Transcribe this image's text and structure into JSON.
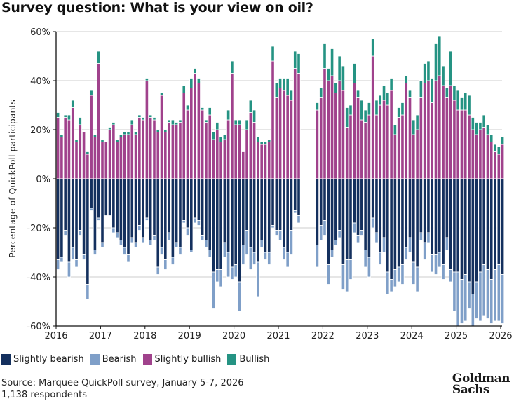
{
  "title": "Survey question: What is your view on oil?",
  "colors": {
    "slightly_bearish": "#14305e",
    "bearish": "#7f9fc8",
    "slightly_bullish": "#a0428c",
    "bullish": "#259383",
    "grid": "#cccccc",
    "axis": "#111111"
  },
  "legend": [
    {
      "key": "slightly_bearish",
      "label": "Slightly bearish"
    },
    {
      "key": "bearish",
      "label": "Bearish"
    },
    {
      "key": "slightly_bullish",
      "label": "Slightly bullish"
    },
    {
      "key": "bullish",
      "label": "Bullish"
    }
  ],
  "source": {
    "line1": "Source: Marquee QuickPoll survey, January 5-7, 2026",
    "line2": "1,138 respondents"
  },
  "logo": {
    "line1": "Goldman",
    "line2": "Sachs"
  },
  "chart_data": {
    "type": "bar",
    "stacked": true,
    "diverging": true,
    "title": "Survey question: What is your view on oil?",
    "xlabel": "",
    "ylabel": "Percentage of QuickPoll participants",
    "ylim": [
      -60,
      60
    ],
    "yticks": [
      60,
      40,
      20,
      0,
      -20,
      -40,
      -60
    ],
    "ytick_labels": [
      "60%",
      "40%",
      "20%",
      "0%",
      "-20%",
      "-40%",
      "-60%"
    ],
    "xticks": [
      "2016",
      "2017",
      "2018",
      "2019",
      "2020",
      "2021",
      "2022",
      "2023",
      "2024",
      "2025",
      "2026"
    ],
    "x_unit": "months since Jan 2016",
    "grid": true,
    "legend_position": "bottom-left",
    "series_order": [
      "slightly_bearish",
      "bearish",
      "slightly_bullish",
      "bullish"
    ],
    "bars": [
      {
        "m": 0,
        "sbull": 25,
        "bull": 2,
        "sbear": 33,
        "bear": 4
      },
      {
        "m": 1,
        "sbull": 17,
        "bull": 1,
        "sbear": 32,
        "bear": 2
      },
      {
        "m": 2,
        "sbull": 25,
        "bull": 1,
        "sbear": 21,
        "bear": 2
      },
      {
        "m": 3,
        "sbull": 24,
        "bull": 2,
        "sbear": 34,
        "bear": 6
      },
      {
        "m": 4,
        "sbull": 29,
        "bull": 3,
        "sbear": 28,
        "bear": 5
      },
      {
        "m": 5,
        "sbull": 15,
        "bull": 1,
        "sbear": 33,
        "bear": 3
      },
      {
        "m": 6,
        "sbull": 22,
        "bull": 3,
        "sbear": 21,
        "bear": 2
      },
      {
        "m": 7,
        "sbull": 19,
        "bull": 0,
        "sbear": 31,
        "bear": 2
      },
      {
        "m": 8,
        "sbull": 10,
        "bull": 1,
        "sbear": 43,
        "bear": 6
      },
      {
        "m": 9,
        "sbull": 34,
        "bull": 2,
        "sbear": 12,
        "bear": 1
      },
      {
        "m": 10,
        "sbull": 17,
        "bull": 1,
        "sbear": 29,
        "bear": 2
      },
      {
        "m": 11,
        "sbull": 47,
        "bull": 5,
        "sbear": 16,
        "bear": 1
      },
      {
        "m": 12,
        "sbull": 15,
        "bull": 1,
        "sbear": 26,
        "bear": 2
      },
      {
        "m": 13,
        "sbull": 15,
        "bull": 0,
        "sbear": 15,
        "bear": 0
      },
      {
        "m": 14,
        "sbull": 20,
        "bull": 1,
        "sbear": 15,
        "bear": 0
      },
      {
        "m": 15,
        "sbull": 22,
        "bull": 1,
        "sbear": 20,
        "bear": 2
      },
      {
        "m": 16,
        "sbull": 15,
        "bull": 1,
        "sbear": 22,
        "bear": 2
      },
      {
        "m": 17,
        "sbull": 17,
        "bull": 1,
        "sbear": 25,
        "bear": 2
      },
      {
        "m": 18,
        "sbull": 18,
        "bull": 1,
        "sbear": 28,
        "bear": 3
      },
      {
        "m": 19,
        "sbull": 18,
        "bull": 1,
        "sbear": 31,
        "bear": 3
      },
      {
        "m": 20,
        "sbull": 22,
        "bull": 2,
        "sbear": 24,
        "bear": 2
      },
      {
        "m": 21,
        "sbull": 18,
        "bull": 1,
        "sbear": 26,
        "bear": 2
      },
      {
        "m": 22,
        "sbull": 25,
        "bull": 1,
        "sbear": 19,
        "bear": 2
      },
      {
        "m": 23,
        "sbull": 24,
        "bull": 1,
        "sbear": 24,
        "bear": 2
      },
      {
        "m": 24,
        "sbull": 40,
        "bull": 1,
        "sbear": 16,
        "bear": 1
      },
      {
        "m": 25,
        "sbull": 25,
        "bull": 1,
        "sbear": 25,
        "bear": 2
      },
      {
        "m": 26,
        "sbull": 24,
        "bull": 1,
        "sbear": 23,
        "bear": 2
      },
      {
        "m": 27,
        "sbull": 19,
        "bull": 1,
        "sbear": 36,
        "bear": 3
      },
      {
        "m": 28,
        "sbull": 34,
        "bull": 1,
        "sbear": 28,
        "bear": 3
      },
      {
        "m": 29,
        "sbull": 19,
        "bull": 1,
        "sbear": 33,
        "bear": 4
      },
      {
        "m": 30,
        "sbull": 23,
        "bull": 1,
        "sbear": 22,
        "bear": 3
      },
      {
        "m": 31,
        "sbull": 22,
        "bull": 2,
        "sbear": 32,
        "bear": 3
      },
      {
        "m": 32,
        "sbull": 22,
        "bull": 1,
        "sbear": 26,
        "bear": 2
      },
      {
        "m": 33,
        "sbull": 23,
        "bull": 1,
        "sbear": 28,
        "bear": 3
      },
      {
        "m": 34,
        "sbull": 35,
        "bull": 3,
        "sbear": 17,
        "bear": 1
      },
      {
        "m": 35,
        "sbull": 28,
        "bull": 2,
        "sbear": 20,
        "bear": 3
      },
      {
        "m": 36,
        "sbull": 37,
        "bull": 4,
        "sbear": 29,
        "bear": 1
      },
      {
        "m": 37,
        "sbull": 43,
        "bull": 2,
        "sbear": 16,
        "bear": 2
      },
      {
        "m": 38,
        "sbull": 39,
        "bull": 2,
        "sbear": 17,
        "bear": 2
      },
      {
        "m": 39,
        "sbull": 28,
        "bull": 1,
        "sbear": 23,
        "bear": 2
      },
      {
        "m": 40,
        "sbull": 23,
        "bull": 1,
        "sbear": 25,
        "bear": 3
      },
      {
        "m": 41,
        "sbull": 26,
        "bull": 3,
        "sbear": 29,
        "bear": 3
      },
      {
        "m": 42,
        "sbull": 16,
        "bull": 3,
        "sbear": 38,
        "bear": 15
      },
      {
        "m": 43,
        "sbull": 20,
        "bull": 3,
        "sbear": 37,
        "bear": 5
      },
      {
        "m": 44,
        "sbull": 15,
        "bull": 2,
        "sbear": 37,
        "bear": 7
      },
      {
        "m": 45,
        "sbull": 16,
        "bull": 2,
        "sbear": 26,
        "bear": 6
      },
      {
        "m": 46,
        "sbull": 24,
        "bull": 4,
        "sbear": 30,
        "bear": 10
      },
      {
        "m": 47,
        "sbull": 43,
        "bull": 5,
        "sbear": 36,
        "bear": 5
      },
      {
        "m": 48,
        "sbull": 22,
        "bull": 2,
        "sbear": 35,
        "bear": 5
      },
      {
        "m": 49,
        "sbull": 22,
        "bull": 2,
        "sbear": 42,
        "bear": 12
      },
      {
        "m": 50,
        "sbull": 11,
        "bull": 0,
        "sbear": 27,
        "bear": 8
      },
      {
        "m": 51,
        "sbull": 20,
        "bull": 4,
        "sbear": 21,
        "bear": 10
      },
      {
        "m": 52,
        "sbull": 27,
        "bull": 5,
        "sbear": 28,
        "bear": 9
      },
      {
        "m": 53,
        "sbull": 23,
        "bull": 5,
        "sbear": 30,
        "bear": 5
      },
      {
        "m": 54,
        "sbull": 15,
        "bull": 2,
        "sbear": 34,
        "bear": 14
      },
      {
        "m": 55,
        "sbull": 14,
        "bull": 1,
        "sbear": 25,
        "bear": 3
      },
      {
        "m": 56,
        "sbull": 14,
        "bull": 1,
        "sbear": 30,
        "bear": 3
      },
      {
        "m": 57,
        "sbull": 15,
        "bull": 1,
        "sbear": 30,
        "bear": 5
      },
      {
        "m": 58,
        "sbull": 48,
        "bull": 6,
        "sbear": 19,
        "bear": 1
      },
      {
        "m": 59,
        "sbull": 33,
        "bull": 6,
        "sbear": 21,
        "bear": 2
      },
      {
        "m": 60,
        "sbull": 37,
        "bull": 4,
        "sbear": 21,
        "bear": 4
      },
      {
        "m": 61,
        "sbull": 36,
        "bull": 5,
        "sbear": 28,
        "bear": 5
      },
      {
        "m": 62,
        "sbull": 34,
        "bull": 7,
        "sbear": 30,
        "bear": 6
      },
      {
        "m": 63,
        "sbull": 32,
        "bull": 4,
        "sbear": 21,
        "bear": 10
      },
      {
        "m": 64,
        "sbull": 45,
        "bull": 7,
        "sbear": 13,
        "bear": 1
      },
      {
        "m": 65,
        "sbull": 43,
        "bull": 8,
        "sbear": 15,
        "bear": 3
      },
      {
        "m": 70,
        "sbull": 28,
        "bull": 3,
        "sbear": 27,
        "bear": 9
      },
      {
        "m": 71,
        "sbull": 33,
        "bull": 4,
        "sbear": 19,
        "bear": 6
      },
      {
        "m": 72,
        "sbull": 45,
        "bull": 10,
        "sbear": 17,
        "bear": 6
      },
      {
        "m": 73,
        "sbull": 40,
        "bull": 5,
        "sbear": 35,
        "bear": 8
      },
      {
        "m": 74,
        "sbull": 42,
        "bull": 11,
        "sbear": 29,
        "bear": 3
      },
      {
        "m": 75,
        "sbull": 35,
        "bull": 4,
        "sbear": 25,
        "bear": 2
      },
      {
        "m": 76,
        "sbull": 40,
        "bull": 10,
        "sbear": 21,
        "bear": 3
      },
      {
        "m": 77,
        "sbull": 36,
        "bull": 10,
        "sbear": 35,
        "bear": 10
      },
      {
        "m": 78,
        "sbull": 21,
        "bull": 8,
        "sbear": 33,
        "bear": 13
      },
      {
        "m": 79,
        "sbull": 26,
        "bull": 4,
        "sbear": 33,
        "bear": 8
      },
      {
        "m": 80,
        "sbull": 39,
        "bull": 8,
        "sbear": 18,
        "bear": 4
      },
      {
        "m": 81,
        "sbull": 33,
        "bull": 3,
        "sbear": 23,
        "bear": 3
      },
      {
        "m": 82,
        "sbull": 24,
        "bull": 8,
        "sbear": 21,
        "bear": 2
      },
      {
        "m": 83,
        "sbull": 23,
        "bull": 5,
        "sbear": 29,
        "bear": 7
      },
      {
        "m": 84,
        "sbull": 26,
        "bull": 5,
        "sbear": 32,
        "bear": 8
      },
      {
        "m": 85,
        "sbull": 50,
        "bull": 7,
        "sbear": 16,
        "bear": 4
      },
      {
        "m": 86,
        "sbull": 26,
        "bull": 6,
        "sbear": 22,
        "bear": 4
      },
      {
        "m": 87,
        "sbull": 30,
        "bull": 4,
        "sbear": 30,
        "bear": 5
      },
      {
        "m": 88,
        "sbull": 32,
        "bull": 6,
        "sbear": 24,
        "bear": 6
      },
      {
        "m": 89,
        "sbull": 30,
        "bull": 5,
        "sbear": 38,
        "bear": 9
      },
      {
        "m": 90,
        "sbull": 36,
        "bull": 5,
        "sbear": 41,
        "bear": 5
      },
      {
        "m": 91,
        "sbull": 18,
        "bull": 4,
        "sbear": 37,
        "bear": 7
      },
      {
        "m": 92,
        "sbull": 25,
        "bull": 4,
        "sbear": 36,
        "bear": 6
      },
      {
        "m": 93,
        "sbull": 26,
        "bull": 5,
        "sbear": 35,
        "bear": 8
      },
      {
        "m": 94,
        "sbull": 39,
        "bull": 3,
        "sbear": 28,
        "bear": 5
      },
      {
        "m": 95,
        "sbull": 33,
        "bull": 3,
        "sbear": 24,
        "bear": 6
      },
      {
        "m": 96,
        "sbull": 18,
        "bull": 6,
        "sbear": 34,
        "bear": 9
      },
      {
        "m": 97,
        "sbull": 20,
        "bull": 6,
        "sbear": 36,
        "bear": 10
      },
      {
        "m": 98,
        "sbull": 33,
        "bull": 7,
        "sbear": 22,
        "bear": 3
      },
      {
        "m": 99,
        "sbull": 39,
        "bull": 8,
        "sbear": 26,
        "bear": 7
      },
      {
        "m": 100,
        "sbull": 40,
        "bull": 8,
        "sbear": 22,
        "bear": 4
      },
      {
        "m": 101,
        "sbull": 31,
        "bull": 10,
        "sbear": 31,
        "bear": 7
      },
      {
        "m": 102,
        "sbull": 40,
        "bull": 15,
        "sbear": 31,
        "bear": 8
      },
      {
        "m": 103,
        "sbull": 42,
        "bull": 16,
        "sbear": 30,
        "bear": 6
      },
      {
        "m": 104,
        "sbull": 38,
        "bull": 8,
        "sbear": 35,
        "bear": 6
      },
      {
        "m": 105,
        "sbull": 33,
        "bull": 4,
        "sbear": 24,
        "bear": 5
      },
      {
        "m": 106,
        "sbull": 38,
        "bull": 14,
        "sbear": 37,
        "bear": 5
      },
      {
        "m": 107,
        "sbull": 32,
        "bull": 6,
        "sbear": 38,
        "bear": 16
      },
      {
        "m": 108,
        "sbull": 28,
        "bull": 8,
        "sbear": 38,
        "bear": 22
      },
      {
        "m": 109,
        "sbull": 28,
        "bull": 5,
        "sbear": 41,
        "bear": 18
      },
      {
        "m": 110,
        "sbull": 28,
        "bull": 7,
        "sbear": 39,
        "bear": 19
      },
      {
        "m": 111,
        "sbull": 26,
        "bull": 8,
        "sbear": 42,
        "bear": 11
      },
      {
        "m": 112,
        "sbull": 20,
        "bull": 5,
        "sbear": 47,
        "bear": 13
      },
      {
        "m": 113,
        "sbull": 18,
        "bull": 5,
        "sbear": 42,
        "bear": 15
      },
      {
        "m": 114,
        "sbull": 20,
        "bull": 3,
        "sbear": 38,
        "bear": 20
      },
      {
        "m": 115,
        "sbull": 21,
        "bull": 5,
        "sbear": 35,
        "bear": 21
      },
      {
        "m": 116,
        "sbull": 18,
        "bull": 4,
        "sbear": 37,
        "bear": 20
      },
      {
        "m": 117,
        "sbull": 15,
        "bull": 3,
        "sbear": 41,
        "bear": 18
      },
      {
        "m": 118,
        "sbull": 11,
        "bull": 3,
        "sbear": 37,
        "bear": 21
      },
      {
        "m": 119,
        "sbull": 10,
        "bull": 3,
        "sbear": 35,
        "bear": 23
      },
      {
        "m": 120,
        "sbull": 14,
        "bull": 3,
        "sbear": 39,
        "bear": 20
      }
    ]
  }
}
